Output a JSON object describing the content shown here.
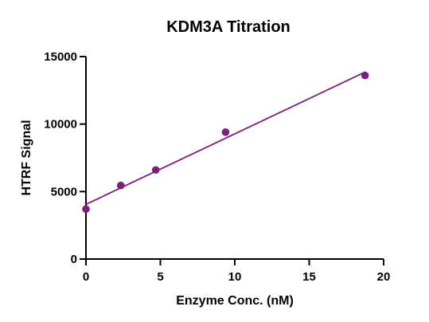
{
  "chart_data": {
    "type": "scatter",
    "title": "KDM3A Titration",
    "xlabel": "Enzyme Conc. (nM)",
    "ylabel": "HTRF Signal",
    "xlim": [
      0,
      20
    ],
    "ylim": [
      0,
      15000
    ],
    "xticks": [
      0,
      5,
      10,
      15,
      20
    ],
    "yticks": [
      0,
      5000,
      10000,
      15000
    ],
    "xtick_labels": [
      "0",
      "5",
      "10",
      "15",
      "20"
    ],
    "ytick_labels": [
      "0",
      "5000",
      "10000",
      "15000"
    ],
    "grid": false,
    "legend": "none",
    "series": [
      {
        "points": [
          {
            "x": 0,
            "y": 3700
          },
          {
            "x": 2.34,
            "y": 5450
          },
          {
            "x": 4.69,
            "y": 6600
          },
          {
            "x": 9.38,
            "y": 9400
          },
          {
            "x": 18.75,
            "y": 13600
          }
        ]
      }
    ],
    "fit_line": {
      "type": "linear",
      "x_range": [
        0,
        18.75
      ],
      "y_start": 4050,
      "y_end": 13850
    },
    "colors": {
      "marker": "#7a1f7a",
      "line": "#7a1f7a",
      "axis": "#000000"
    }
  }
}
